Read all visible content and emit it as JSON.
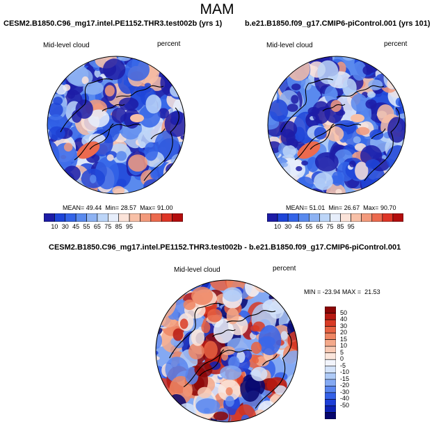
{
  "main_title": "MAM",
  "colors": {
    "land_line": "#000000",
    "seq_colors": [
      "#1d1ca6",
      "#1e45d8",
      "#3464e8",
      "#5a8aee",
      "#8db2f3",
      "#bcd5f8",
      "#e7eefb",
      "#fbe3d9",
      "#f8c0a7",
      "#f39a7c",
      "#ec6a4e",
      "#de3526",
      "#b30d0d"
    ],
    "div_colors": [
      "#06066e",
      "#0d22b5",
      "#1e3fd8",
      "#3561e8",
      "#5a86ef",
      "#84a9f3",
      "#aecaf7",
      "#d4e3fa",
      "#f2f4fb",
      "#fbe6dc",
      "#f8c9b3",
      "#f4a98a",
      "#ef8663",
      "#e86343",
      "#d93b25",
      "#b81a12",
      "#8c0606"
    ]
  },
  "chart_data": [
    {
      "type": "heatmap",
      "projection": "polar-stereographic-north",
      "title": "CESM2.B1850.C96_mg17.intel.PE1152.THR3.test002b (yrs 1)",
      "variable": "Mid-level cloud",
      "units": "percent",
      "stats": {
        "mean": "49.44",
        "min": "28.57",
        "max": "91.00"
      },
      "stats_labels": {
        "mean": "MEAN=",
        "min": "Min=",
        "max": "Max="
      },
      "colorbar": {
        "orientation": "horizontal",
        "labels": [
          "10",
          "30",
          "45",
          "55",
          "65",
          "75",
          "85",
          "95"
        ]
      }
    },
    {
      "type": "heatmap",
      "projection": "polar-stereographic-north",
      "title": "b.e21.B1850.f09_g17.CMIP6-piControl.001 (yrs 101)",
      "variable": "Mid-level cloud",
      "units": "percent",
      "stats": {
        "mean": "51.01",
        "min": "26.67",
        "max": "90.70"
      },
      "stats_labels": {
        "mean": "MEAN=",
        "min": "Min=",
        "max": "Max="
      },
      "colorbar": {
        "orientation": "horizontal",
        "labels": [
          "10",
          "30",
          "45",
          "55",
          "65",
          "75",
          "85",
          "95"
        ]
      }
    },
    {
      "type": "heatmap",
      "projection": "polar-stereographic-north",
      "title": "CESM2.B1850.C96_mg17.intel.PE1152.THR3.test002b - b.e21.B1850.f09_g17.CMIP6-piControl.001",
      "variable": "Mid-level cloud",
      "units": "percent",
      "stats": {
        "min": "-23.94",
        "max": "21.53"
      },
      "stats_labels": {
        "min": "MIN =",
        "max": "MAX ="
      },
      "colorbar": {
        "orientation": "vertical",
        "labels": [
          "50",
          "40",
          "30",
          "20",
          "15",
          "10",
          "5",
          "0",
          "-5",
          "-10",
          "-15",
          "-20",
          "-30",
          "-40",
          "-50"
        ]
      }
    }
  ]
}
